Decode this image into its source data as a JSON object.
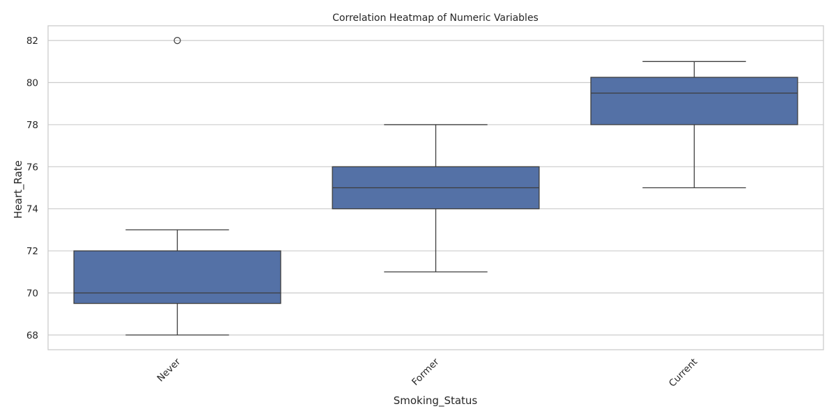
{
  "chart_data": {
    "type": "box",
    "title": "Correlation Heatmap of Numeric Variables",
    "xlabel": "Smoking_Status",
    "ylabel": "Heart_Rate",
    "categories": [
      "Never",
      "Former",
      "Current"
    ],
    "ylim": [
      67.3,
      82.7
    ],
    "yticks": [
      68,
      70,
      72,
      74,
      76,
      78,
      80,
      82
    ],
    "ytick_labels": [
      "68",
      "70",
      "72",
      "74",
      "76",
      "78",
      "80",
      "82"
    ],
    "grid": true,
    "x_tick_rotation_deg": 45,
    "boxes": [
      {
        "category": "Never",
        "whisker_low": 68,
        "q1": 69.5,
        "median": 70,
        "q3": 72,
        "whisker_high": 73,
        "outliers": [
          82
        ]
      },
      {
        "category": "Former",
        "whisker_low": 71,
        "q1": 74,
        "median": 75,
        "q3": 76,
        "whisker_high": 78,
        "outliers": []
      },
      {
        "category": "Current",
        "whisker_low": 75,
        "q1": 78,
        "median": 79.5,
        "q3": 80.25,
        "whisker_high": 81,
        "outliers": []
      }
    ],
    "colors": {
      "box_fill": "#5471a6",
      "line": "#3d3d3d",
      "grid": "#cccccc",
      "frame": "#cccccc"
    }
  }
}
